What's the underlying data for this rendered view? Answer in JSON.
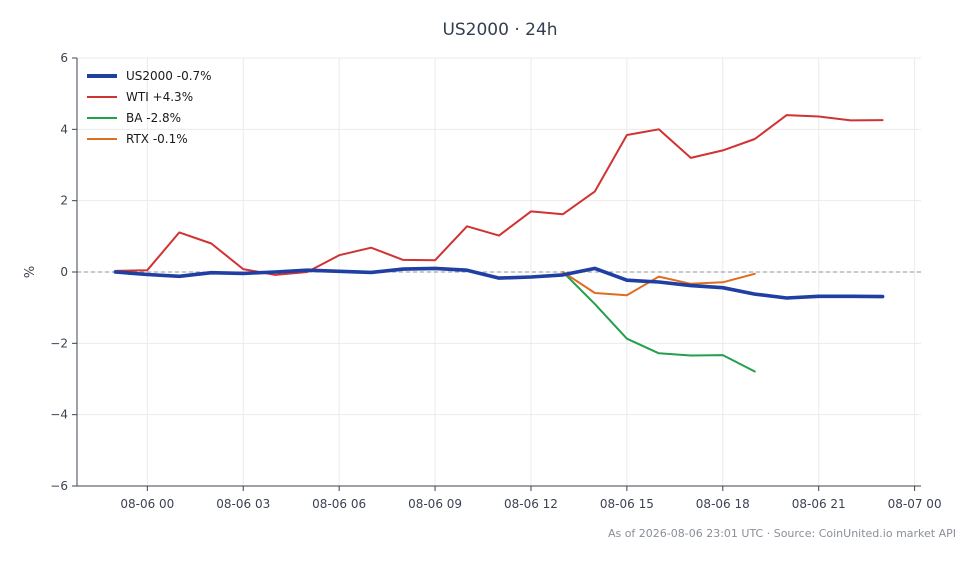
{
  "chart_data": {
    "type": "line",
    "title": "US2000 · 24h",
    "xlabel": "",
    "ylabel": "%",
    "ylim": [
      -6,
      6
    ],
    "yticks": [
      -6,
      -4,
      -2,
      0,
      2,
      4,
      6
    ],
    "ytick_labels": [
      "−6",
      "−4",
      "−2",
      "0",
      "2",
      "4",
      "6"
    ],
    "xlim": [
      "08-05 21:48",
      "08-07 00:12"
    ],
    "xticks": [
      "08-06 00:00",
      "08-06 03:00",
      "08-06 06:00",
      "08-06 09:00",
      "08-06 12:00",
      "08-06 15:00",
      "08-06 18:00",
      "08-06 21:00",
      "08-07 00:00"
    ],
    "xtick_labels": [
      "08-06 00",
      "08-06 03",
      "08-06 06",
      "08-06 09",
      "08-06 12",
      "08-06 15",
      "08-06 18",
      "08-06 21",
      "08-07 00"
    ],
    "grid": true,
    "legend_position": "top-left",
    "zero_line": true,
    "series": [
      {
        "name": "US2000 -0.7%",
        "color": "#1f3fa3",
        "line_width": "bold",
        "x": [
          "08-05 23:00",
          "08-06 00:00",
          "08-06 01:00",
          "08-06 02:00",
          "08-06 03:00",
          "08-06 04:00",
          "08-06 05:00",
          "08-06 06:00",
          "08-06 07:00",
          "08-06 08:00",
          "08-06 09:00",
          "08-06 10:00",
          "08-06 11:00",
          "08-06 12:00",
          "08-06 13:00",
          "08-06 14:00",
          "08-06 15:00",
          "08-06 16:00",
          "08-06 17:00",
          "08-06 18:00",
          "08-06 19:00",
          "08-06 20:00",
          "08-06 21:00",
          "08-06 22:00",
          "08-06 23:00"
        ],
        "values": [
          0.0,
          -0.07,
          -0.12,
          -0.02,
          -0.04,
          0.0,
          0.05,
          0.02,
          -0.01,
          0.08,
          0.1,
          0.05,
          -0.17,
          -0.14,
          -0.08,
          0.1,
          -0.23,
          -0.28,
          -0.38,
          -0.44,
          -0.62,
          -0.73,
          -0.68,
          -0.68,
          -0.69
        ]
      },
      {
        "name": "WTI +4.3%",
        "color": "#d13232",
        "line_width": "normal",
        "x": [
          "08-05 23:00",
          "08-06 00:00",
          "08-06 01:00",
          "08-06 02:00",
          "08-06 03:00",
          "08-06 04:00",
          "08-06 05:00",
          "08-06 06:00",
          "08-06 07:00",
          "08-06 08:00",
          "08-06 09:00",
          "08-06 10:00",
          "08-06 11:00",
          "08-06 12:00",
          "08-06 13:00",
          "08-06 14:00",
          "08-06 15:00",
          "08-06 16:00",
          "08-06 17:00",
          "08-06 18:00",
          "08-06 19:00",
          "08-06 20:00",
          "08-06 21:00",
          "08-06 22:00",
          "08-06 23:00"
        ],
        "values": [
          0.03,
          0.05,
          1.11,
          0.8,
          0.08,
          -0.08,
          0.0,
          0.47,
          0.68,
          0.34,
          0.33,
          1.28,
          1.02,
          1.7,
          1.62,
          2.26,
          3.84,
          4.0,
          3.2,
          3.41,
          3.73,
          4.4,
          4.36,
          4.25,
          4.26
        ]
      },
      {
        "name": "BA -2.8%",
        "color": "#22a04b",
        "line_width": "normal",
        "x": [
          "08-06 13:00",
          "08-06 14:00",
          "08-06 15:00",
          "08-06 16:00",
          "08-06 17:00",
          "08-06 18:00",
          "08-06 19:00"
        ],
        "values": [
          0.0,
          -0.9,
          -1.87,
          -2.28,
          -2.34,
          -2.33,
          -2.79
        ]
      },
      {
        "name": "RTX -0.1%",
        "color": "#e06c1f",
        "line_width": "normal",
        "x": [
          "08-06 13:00",
          "08-06 14:00",
          "08-06 15:00",
          "08-06 16:00",
          "08-06 17:00",
          "08-06 18:00",
          "08-06 19:00"
        ],
        "values": [
          0.0,
          -0.59,
          -0.65,
          -0.13,
          -0.33,
          -0.29,
          -0.05
        ]
      }
    ]
  },
  "footer": "As of 2026-08-06 23:01 UTC · Source: CoinUnited.io market API"
}
